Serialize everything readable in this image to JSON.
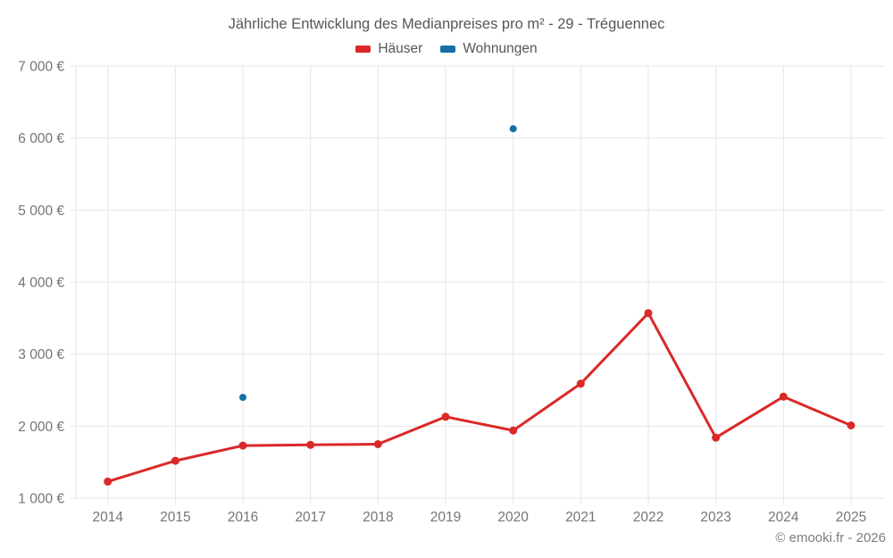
{
  "header": {
    "title": "Jährliche Entwicklung des Medianpreises pro m² - 29 - Tréguennec"
  },
  "footer": {
    "copyright": "© emooki.fr - 2026"
  },
  "chart_data": {
    "type": "line",
    "title": "Jährliche Entwicklung des Medianpreises pro m² - 29 - Tréguennec",
    "categories": [
      "2014",
      "2015",
      "2016",
      "2017",
      "2018",
      "2019",
      "2020",
      "2021",
      "2022",
      "2023",
      "2024",
      "2025"
    ],
    "series": [
      {
        "name": "Häuser",
        "color": "#da2928",
        "marker_radius": 4.5,
        "line_width": 3,
        "values": [
          1230,
          1520,
          1730,
          1740,
          1750,
          2130,
          1940,
          2590,
          3570,
          1840,
          2410,
          2010
        ]
      },
      {
        "name": "Wohnungen",
        "color": "#1470a6",
        "marker_radius": 4,
        "line_width": 3,
        "values": [
          null,
          null,
          2400,
          null,
          null,
          null,
          6130,
          null,
          null,
          null,
          null,
          null
        ]
      }
    ],
    "ylim": [
      1000,
      7000
    ],
    "ytick_step": 1000,
    "yticks": [
      {
        "value": 1000,
        "label": "1 000 €"
      },
      {
        "value": 2000,
        "label": "2 000 €"
      },
      {
        "value": 3000,
        "label": "3 000 €"
      },
      {
        "value": 4000,
        "label": "4 000 €"
      },
      {
        "value": 5000,
        "label": "5 000 €"
      },
      {
        "value": 6000,
        "label": "6 000 €"
      },
      {
        "value": 7000,
        "label": "7 000 €"
      }
    ],
    "xlabel": "",
    "ylabel": "",
    "grid": true,
    "legend_position": "top",
    "colors": {
      "grid": "#e6e6e6",
      "axis_text": "#757575",
      "title_text": "#565656"
    }
  }
}
